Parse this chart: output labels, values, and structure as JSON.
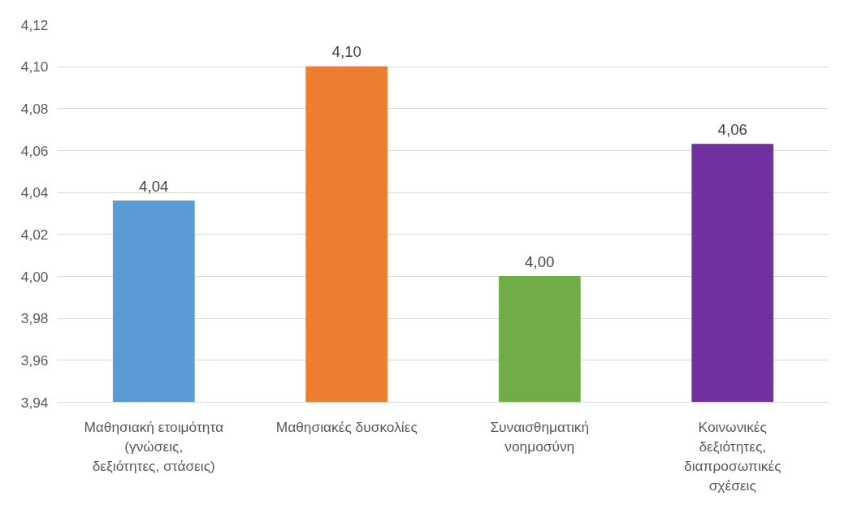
{
  "chart_data": {
    "type": "bar",
    "categories": [
      "Μαθησιακή ετοιμότητα (γνώσεις, δεξιότητες, στάσεις)",
      "Μαθησιακές δυσκολίες",
      "Συναισθηματική νοημοσύνη",
      "Κοινωνικές δεξιότητες, διαπροσωπικές σχέσεις"
    ],
    "values": [
      4.036,
      4.1,
      4.0,
      4.063
    ],
    "value_labels": [
      "4,04",
      "4,10",
      "4,00",
      "4,06"
    ],
    "colors": [
      "#5b9bd5",
      "#ed7d31",
      "#70ad47",
      "#7030a0"
    ],
    "ylim": [
      3.94,
      4.12
    ],
    "yticks": [
      {
        "value": 3.94,
        "label": "3,94"
      },
      {
        "value": 3.96,
        "label": "3,96"
      },
      {
        "value": 3.98,
        "label": "3,98"
      },
      {
        "value": 4.0,
        "label": "4,00"
      },
      {
        "value": 4.02,
        "label": "4,02"
      },
      {
        "value": 4.04,
        "label": "4,04"
      },
      {
        "value": 4.06,
        "label": "4,06"
      },
      {
        "value": 4.08,
        "label": "4,08"
      },
      {
        "value": 4.1,
        "label": "4,10"
      },
      {
        "value": 4.12,
        "label": "4,12"
      }
    ],
    "grid": "y"
  }
}
